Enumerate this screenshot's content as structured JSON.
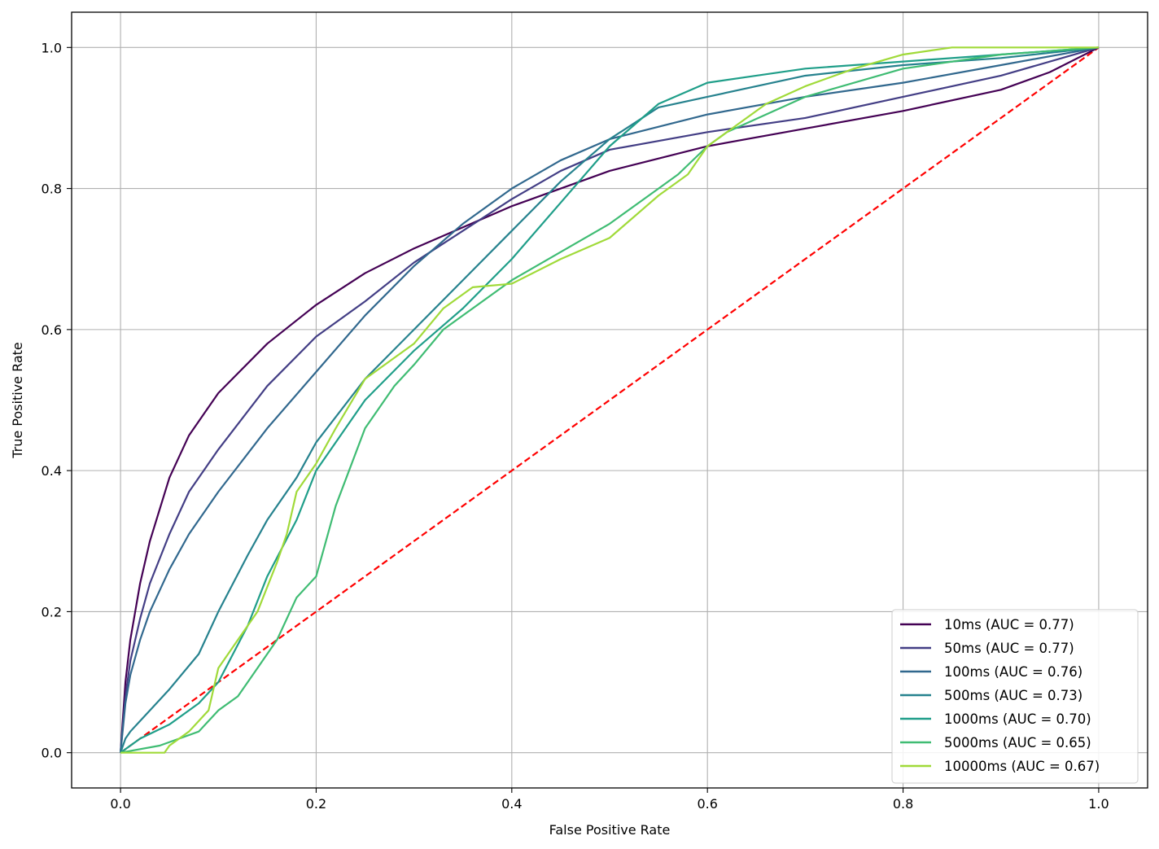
{
  "chart_data": {
    "type": "line",
    "xlabel": "False Positive Rate",
    "ylabel": "True Positive Rate",
    "xlim": [
      -0.05,
      1.05
    ],
    "ylim": [
      -0.05,
      1.05
    ],
    "xticks": [
      "0.0",
      "0.2",
      "0.4",
      "0.6",
      "0.8",
      "1.0"
    ],
    "yticks": [
      "0.0",
      "0.2",
      "0.4",
      "0.6",
      "0.8",
      "1.0"
    ],
    "grid": true,
    "legend_position": "lower-right",
    "series": [
      {
        "name": "10ms (AUC = 0.77)",
        "color": "#440154",
        "x": [
          0,
          0.005,
          0.01,
          0.02,
          0.03,
          0.05,
          0.07,
          0.1,
          0.15,
          0.2,
          0.25,
          0.3,
          0.35,
          0.4,
          0.5,
          0.6,
          0.7,
          0.8,
          0.9,
          0.95,
          1.0
        ],
        "y": [
          0,
          0.1,
          0.16,
          0.24,
          0.3,
          0.39,
          0.45,
          0.51,
          0.58,
          0.635,
          0.68,
          0.715,
          0.745,
          0.775,
          0.825,
          0.86,
          0.885,
          0.91,
          0.94,
          0.965,
          1.0
        ]
      },
      {
        "name": "50ms (AUC = 0.77)",
        "color": "#433e85",
        "x": [
          0,
          0.005,
          0.01,
          0.02,
          0.03,
          0.05,
          0.07,
          0.1,
          0.15,
          0.2,
          0.25,
          0.3,
          0.35,
          0.4,
          0.45,
          0.5,
          0.6,
          0.7,
          0.8,
          0.9,
          1.0
        ],
        "y": [
          0,
          0.08,
          0.13,
          0.19,
          0.24,
          0.31,
          0.37,
          0.43,
          0.52,
          0.59,
          0.64,
          0.695,
          0.74,
          0.785,
          0.825,
          0.855,
          0.88,
          0.9,
          0.93,
          0.96,
          1.0
        ]
      },
      {
        "name": "100ms (AUC = 0.76)",
        "color": "#31688e",
        "x": [
          0,
          0.005,
          0.01,
          0.02,
          0.03,
          0.05,
          0.07,
          0.1,
          0.15,
          0.2,
          0.25,
          0.3,
          0.35,
          0.4,
          0.45,
          0.5,
          0.6,
          0.7,
          0.8,
          0.9,
          1.0
        ],
        "y": [
          0,
          0.07,
          0.11,
          0.16,
          0.2,
          0.26,
          0.31,
          0.37,
          0.46,
          0.54,
          0.62,
          0.69,
          0.75,
          0.8,
          0.84,
          0.87,
          0.905,
          0.93,
          0.95,
          0.975,
          1.0
        ]
      },
      {
        "name": "500ms (AUC = 0.73)",
        "color": "#26828e",
        "x": [
          0,
          0.005,
          0.01,
          0.03,
          0.05,
          0.08,
          0.1,
          0.13,
          0.15,
          0.18,
          0.2,
          0.25,
          0.3,
          0.35,
          0.4,
          0.45,
          0.5,
          0.55,
          0.6,
          0.7,
          0.8,
          0.9,
          1.0
        ],
        "y": [
          0,
          0.02,
          0.03,
          0.06,
          0.09,
          0.14,
          0.2,
          0.28,
          0.33,
          0.39,
          0.44,
          0.53,
          0.6,
          0.67,
          0.74,
          0.81,
          0.87,
          0.915,
          0.93,
          0.96,
          0.975,
          0.985,
          1.0
        ]
      },
      {
        "name": "1000ms (AUC = 0.70)",
        "color": "#1f9e89",
        "x": [
          0,
          0.02,
          0.05,
          0.08,
          0.1,
          0.13,
          0.15,
          0.18,
          0.2,
          0.25,
          0.3,
          0.35,
          0.4,
          0.45,
          0.5,
          0.55,
          0.6,
          0.65,
          0.7,
          0.8,
          0.9,
          1.0
        ],
        "y": [
          0,
          0.02,
          0.04,
          0.07,
          0.1,
          0.18,
          0.25,
          0.33,
          0.4,
          0.5,
          0.57,
          0.63,
          0.7,
          0.78,
          0.86,
          0.92,
          0.95,
          0.96,
          0.97,
          0.98,
          0.99,
          1.0
        ]
      },
      {
        "name": "5000ms (AUC = 0.65)",
        "color": "#3fbc73",
        "x": [
          0,
          0.04,
          0.06,
          0.08,
          0.1,
          0.12,
          0.14,
          0.16,
          0.18,
          0.2,
          0.22,
          0.25,
          0.28,
          0.3,
          0.33,
          0.35,
          0.4,
          0.45,
          0.5,
          0.55,
          0.57,
          0.6,
          0.62,
          0.7,
          0.8,
          0.9,
          1.0
        ],
        "y": [
          0,
          0.01,
          0.02,
          0.03,
          0.06,
          0.08,
          0.12,
          0.16,
          0.22,
          0.25,
          0.35,
          0.46,
          0.52,
          0.55,
          0.6,
          0.62,
          0.67,
          0.71,
          0.75,
          0.8,
          0.82,
          0.86,
          0.88,
          0.93,
          0.97,
          0.99,
          1.0
        ]
      },
      {
        "name": "10000ms (AUC = 0.67)",
        "color": "#a0da39",
        "x": [
          0,
          0.045,
          0.05,
          0.07,
          0.09,
          0.1,
          0.12,
          0.14,
          0.16,
          0.17,
          0.18,
          0.2,
          0.22,
          0.25,
          0.28,
          0.3,
          0.33,
          0.36,
          0.4,
          0.45,
          0.5,
          0.55,
          0.58,
          0.6,
          0.63,
          0.66,
          0.7,
          0.75,
          0.8,
          0.85,
          0.9,
          1.0
        ],
        "y": [
          0,
          0.0,
          0.01,
          0.03,
          0.06,
          0.12,
          0.16,
          0.2,
          0.27,
          0.31,
          0.37,
          0.41,
          0.46,
          0.53,
          0.56,
          0.58,
          0.63,
          0.66,
          0.665,
          0.7,
          0.73,
          0.79,
          0.82,
          0.86,
          0.89,
          0.92,
          0.945,
          0.97,
          0.99,
          1.0,
          1.0,
          1.0
        ]
      }
    ],
    "reference_line": {
      "x": [
        0,
        1
      ],
      "y": [
        0,
        1
      ],
      "color": "#ff0000",
      "style": "dashed"
    }
  }
}
